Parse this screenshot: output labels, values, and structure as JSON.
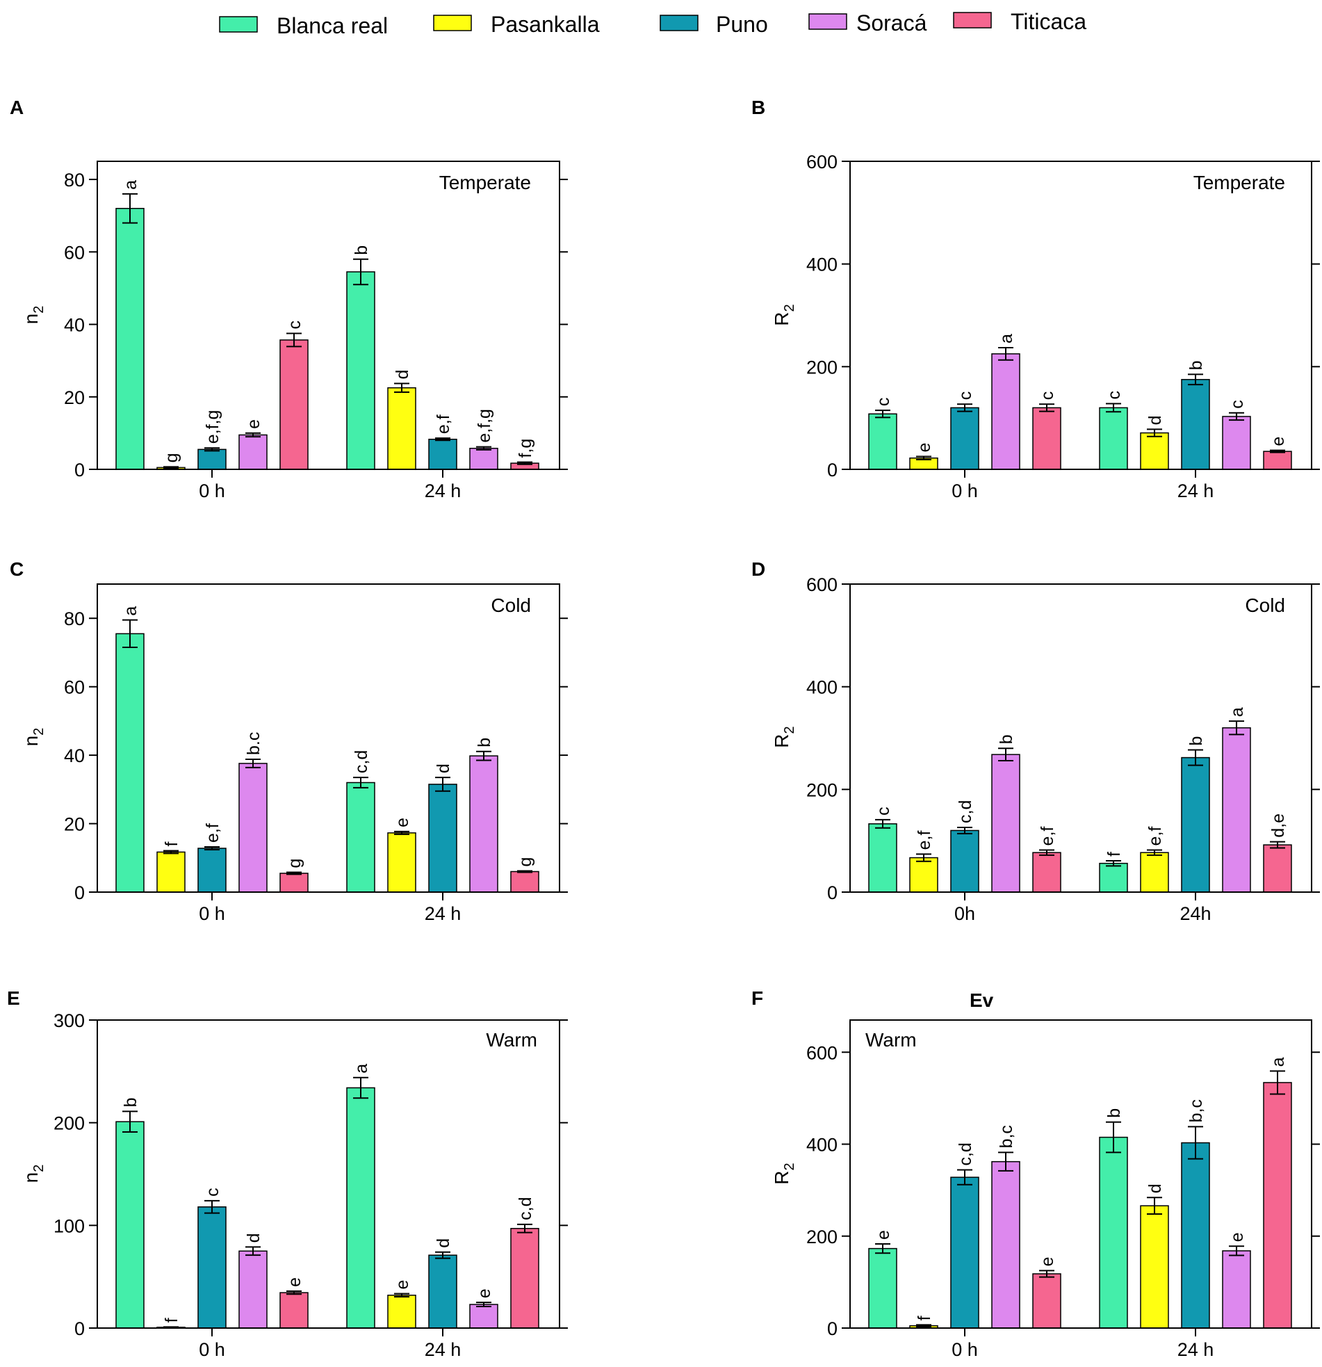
{
  "legend": [
    {
      "label": "Blanca real",
      "color": "#44EEAA"
    },
    {
      "label": "Pasankalla",
      "color": "#FFFF11"
    },
    {
      "label": "Puno",
      "color": "#1199B0"
    },
    {
      "label": "Soracá",
      "color": "#DD88EE"
    },
    {
      "label": "Titicaca",
      "color": "#F56690"
    }
  ],
  "chart_data": [
    {
      "panel": "A",
      "type": "bar",
      "title": "Temperate",
      "ylabel": "n2",
      "ylim": [
        0,
        85
      ],
      "yticks": [
        0,
        20,
        40,
        60,
        80
      ],
      "categories": [
        "0 h",
        "24 h"
      ],
      "series": [
        {
          "name": "Blanca real",
          "values": [
            72,
            54.5
          ],
          "errors": [
            4,
            3.5
          ],
          "labels": [
            "a",
            "b"
          ]
        },
        {
          "name": "Pasankalla",
          "values": [
            0.5,
            22.5
          ],
          "errors": [
            0.2,
            1.2
          ],
          "labels": [
            "g",
            "d"
          ]
        },
        {
          "name": "Puno",
          "values": [
            5.5,
            8.3
          ],
          "errors": [
            0.4,
            0.3
          ],
          "labels": [
            "e,f,g",
            "e,f"
          ]
        },
        {
          "name": "Soracá",
          "values": [
            9.5,
            5.8
          ],
          "errors": [
            0.5,
            0.4
          ],
          "labels": [
            "e",
            "e,f,g"
          ]
        },
        {
          "name": "Titicaca",
          "values": [
            35.7,
            1.7
          ],
          "errors": [
            1.8,
            0.3
          ],
          "labels": [
            "c",
            "f,g"
          ]
        }
      ]
    },
    {
      "panel": "B",
      "type": "bar",
      "title": "Temperate",
      "ylabel": "R2",
      "ylim": [
        0,
        600
      ],
      "yticks": [
        0,
        200,
        400,
        600
      ],
      "categories": [
        "0 h",
        "24 h"
      ],
      "series": [
        {
          "name": "Blanca real",
          "values": [
            108,
            120
          ],
          "errors": [
            7,
            8
          ],
          "labels": [
            "c",
            "c"
          ]
        },
        {
          "name": "Pasankalla",
          "values": [
            22,
            71
          ],
          "errors": [
            3,
            7
          ],
          "labels": [
            "e",
            "d"
          ]
        },
        {
          "name": "Puno",
          "values": [
            120,
            175
          ],
          "errors": [
            7,
            10
          ],
          "labels": [
            "c",
            "b"
          ]
        },
        {
          "name": "Soracá",
          "values": [
            225,
            103
          ],
          "errors": [
            12,
            7
          ],
          "labels": [
            "a",
            "c"
          ]
        },
        {
          "name": "Titicaca",
          "values": [
            120,
            35
          ],
          "errors": [
            7,
            2
          ],
          "labels": [
            "c",
            "e"
          ]
        }
      ]
    },
    {
      "panel": "C",
      "type": "bar",
      "title": "Cold",
      "ylabel": "n2",
      "ylim": [
        0,
        90
      ],
      "yticks": [
        0,
        20,
        40,
        60,
        80
      ],
      "categories": [
        "0 h",
        "24 h"
      ],
      "series": [
        {
          "name": "Blanca real",
          "values": [
            75.5,
            32
          ],
          "errors": [
            4,
            1.5
          ],
          "labels": [
            "a",
            "c,d"
          ]
        },
        {
          "name": "Pasankalla",
          "values": [
            11.7,
            17.3
          ],
          "errors": [
            0.4,
            0.4
          ],
          "labels": [
            "f",
            "e"
          ]
        },
        {
          "name": "Puno",
          "values": [
            12.8,
            31.5
          ],
          "errors": [
            0.4,
            2
          ],
          "labels": [
            "e,f",
            "d"
          ]
        },
        {
          "name": "Soracá",
          "values": [
            37.6,
            39.8
          ],
          "errors": [
            1.2,
            1.3
          ],
          "labels": [
            "b.c",
            "b"
          ]
        },
        {
          "name": "Titicaca",
          "values": [
            5.5,
            6
          ],
          "errors": [
            0.3,
            0.2
          ],
          "labels": [
            "g",
            "g"
          ]
        }
      ]
    },
    {
      "panel": "D",
      "type": "bar",
      "title": "Cold",
      "ylabel": "R2",
      "ylim": [
        0,
        600
      ],
      "yticks": [
        0,
        200,
        400,
        600
      ],
      "categories": [
        "0h",
        "24h"
      ],
      "series": [
        {
          "name": "Blanca real",
          "values": [
            133,
            56
          ],
          "errors": [
            8,
            5
          ],
          "labels": [
            "c",
            "f"
          ]
        },
        {
          "name": "Pasankalla",
          "values": [
            67,
            77
          ],
          "errors": [
            7,
            5
          ],
          "labels": [
            "e,f",
            "e,f"
          ]
        },
        {
          "name": "Puno",
          "values": [
            120,
            262
          ],
          "errors": [
            6,
            15
          ],
          "labels": [
            "c,d",
            "b"
          ]
        },
        {
          "name": "Soracá",
          "values": [
            268,
            320
          ],
          "errors": [
            12,
            13
          ],
          "labels": [
            "b",
            "a"
          ]
        },
        {
          "name": "Titicaca",
          "values": [
            77,
            92
          ],
          "errors": [
            5,
            6
          ],
          "labels": [
            "e,f",
            "d,e"
          ]
        }
      ]
    },
    {
      "panel": "E",
      "type": "bar",
      "title": "Warm",
      "ylabel": "n2",
      "ylim": [
        0,
        300
      ],
      "yticks": [
        0,
        100,
        200,
        300
      ],
      "categories": [
        "0 h",
        "24 h"
      ],
      "series": [
        {
          "name": "Blanca real",
          "values": [
            201,
            234
          ],
          "errors": [
            10,
            10
          ],
          "labels": [
            "b",
            "a"
          ]
        },
        {
          "name": "Pasankalla",
          "values": [
            0.8,
            32
          ],
          "errors": [
            0.3,
            1.5
          ],
          "labels": [
            "f",
            "e"
          ]
        },
        {
          "name": "Puno",
          "values": [
            118,
            71
          ],
          "errors": [
            6,
            3
          ],
          "labels": [
            "c",
            "d"
          ]
        },
        {
          "name": "Soracá",
          "values": [
            75,
            23
          ],
          "errors": [
            4,
            2
          ],
          "labels": [
            "d",
            "e"
          ]
        },
        {
          "name": "Titicaca",
          "values": [
            34.5,
            97
          ],
          "errors": [
            1.5,
            4
          ],
          "labels": [
            "e",
            "c,d"
          ]
        }
      ]
    },
    {
      "panel": "F",
      "type": "bar",
      "title": "Warm",
      "extra_title": "Ev",
      "ylabel": "R2",
      "ylim": [
        0,
        670
      ],
      "yticks": [
        0,
        200,
        400,
        600
      ],
      "categories": [
        "0 h",
        "24 h"
      ],
      "series": [
        {
          "name": "Blanca real",
          "values": [
            173,
            415
          ],
          "errors": [
            10,
            33
          ],
          "labels": [
            "e",
            "b"
          ]
        },
        {
          "name": "Pasankalla",
          "values": [
            5,
            266
          ],
          "errors": [
            2,
            18
          ],
          "labels": [
            "f",
            "d"
          ]
        },
        {
          "name": "Puno",
          "values": [
            328,
            403
          ],
          "errors": [
            16,
            35
          ],
          "labels": [
            "c,d",
            "b,c"
          ]
        },
        {
          "name": "Soracá",
          "values": [
            362,
            168
          ],
          "errors": [
            20,
            10
          ],
          "labels": [
            "b,c",
            "e"
          ]
        },
        {
          "name": "Titicaca",
          "values": [
            118,
            534
          ],
          "errors": [
            7,
            25
          ],
          "labels": [
            "e",
            "a"
          ]
        }
      ]
    }
  ]
}
